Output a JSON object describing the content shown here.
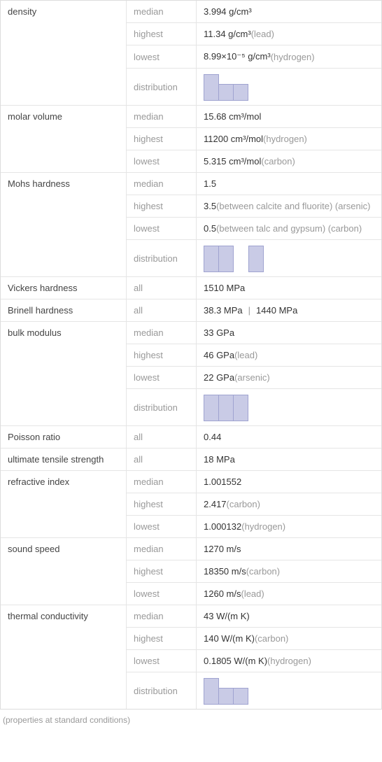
{
  "footnote": "(properties at standard conditions)",
  "label_median": "median",
  "label_highest": "highest",
  "label_lowest": "lowest",
  "label_distribution": "distribution",
  "label_all": "all",
  "density": {
    "name": "density",
    "median": "3.994 g/cm³",
    "highest_val": "11.34 g/cm³",
    "highest_qual": " (lead)",
    "lowest_val": "8.99×10⁻⁵ g/cm³",
    "lowest_qual": " (hydrogen)",
    "dist": {
      "bars": [
        38,
        24,
        24
      ],
      "bar_color": "#c9cbe6",
      "border_color": "#9fa3d0"
    }
  },
  "molar_volume": {
    "name": "molar volume",
    "median": "15.68 cm³/mol",
    "highest_val": "11200 cm³/mol",
    "highest_qual": " (hydrogen)",
    "lowest_val": "5.315 cm³/mol",
    "lowest_qual": " (carbon)"
  },
  "mohs": {
    "name": "Mohs hardness",
    "median": "1.5",
    "highest_val": "3.5",
    "highest_qual": " (between calcite and fluorite) (arsenic)",
    "lowest_val": "0.5",
    "lowest_qual": " (between talc and gypsum) (carbon)",
    "dist": {
      "bars": [
        38,
        38,
        0,
        38
      ],
      "bar_color": "#c9cbe6",
      "border_color": "#9fa3d0"
    }
  },
  "vickers": {
    "name": "Vickers hardness",
    "all": "1510 MPa"
  },
  "brinell": {
    "name": "Brinell hardness",
    "all_v1": "38.3 MPa",
    "all_v2": "1440 MPa"
  },
  "bulk": {
    "name": "bulk modulus",
    "median": "33 GPa",
    "highest_val": "46 GPa",
    "highest_qual": " (lead)",
    "lowest_val": "22 GPa",
    "lowest_qual": " (arsenic)",
    "dist": {
      "bars": [
        38,
        38,
        38
      ],
      "bar_color": "#c9cbe6",
      "border_color": "#9fa3d0"
    }
  },
  "poisson": {
    "name": "Poisson ratio",
    "all": "0.44"
  },
  "uts": {
    "name": "ultimate tensile strength",
    "all": "18 MPa"
  },
  "refractive": {
    "name": "refractive index",
    "median": "1.001552",
    "highest_val": "2.417",
    "highest_qual": " (carbon)",
    "lowest_val": "1.000132",
    "lowest_qual": " (hydrogen)"
  },
  "sound": {
    "name": "sound speed",
    "median": "1270 m/s",
    "highest_val": "18350 m/s",
    "highest_qual": " (carbon)",
    "lowest_val": "1260 m/s",
    "lowest_qual": " (lead)"
  },
  "thermal": {
    "name": "thermal conductivity",
    "median": "43 W/(m K)",
    "highest_val": "140 W/(m K)",
    "highest_qual": " (carbon)",
    "lowest_val": "0.1805 W/(m K)",
    "lowest_qual": " (hydrogen)",
    "dist": {
      "bars": [
        38,
        24,
        24
      ],
      "bar_color": "#c9cbe6",
      "border_color": "#9fa3d0"
    }
  }
}
